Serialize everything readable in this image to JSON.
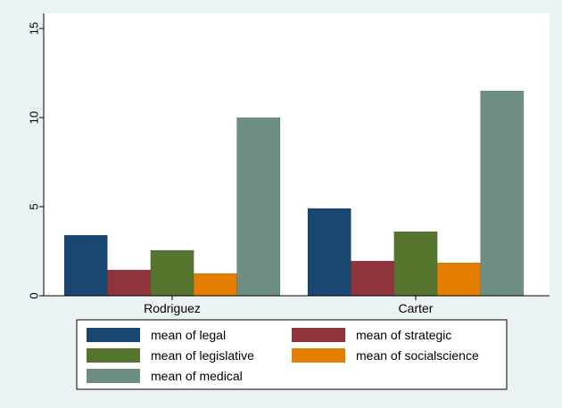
{
  "chart_data": {
    "type": "bar",
    "title": "",
    "xlabel": "",
    "ylabel": "",
    "ylim": [
      0,
      15
    ],
    "yticks": [
      0,
      5,
      10,
      15
    ],
    "grid": false,
    "legend_position": "bottom",
    "categories": [
      "Rodriguez",
      "Carter"
    ],
    "series": [
      {
        "name": "mean of legal",
        "color": "#1a476f",
        "values": [
          3.4,
          4.9
        ]
      },
      {
        "name": "mean of strategic",
        "color": "#90353b",
        "values": [
          1.45,
          1.95
        ]
      },
      {
        "name": "mean of legislative",
        "color": "#55752f",
        "values": [
          2.55,
          3.6
        ]
      },
      {
        "name": "mean of socialscience",
        "color": "#e37e00",
        "values": [
          1.25,
          1.85
        ]
      },
      {
        "name": "mean of medical",
        "color": "#6e8e84",
        "values": [
          10.0,
          11.5
        ]
      }
    ]
  }
}
